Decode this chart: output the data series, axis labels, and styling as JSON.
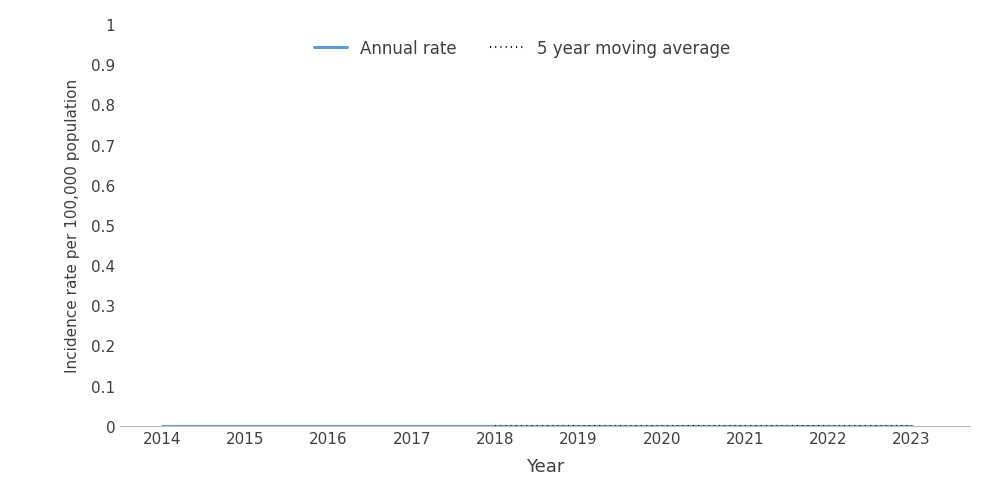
{
  "years": [
    2014,
    2015,
    2016,
    2017,
    2018,
    2019,
    2020,
    2021,
    2022,
    2023
  ],
  "annual_rate": [
    0.0,
    0.0,
    0.0,
    0.0,
    0.0,
    0.0,
    0.0,
    0.0,
    0.0,
    0.0
  ],
  "moving_avg": [
    null,
    null,
    null,
    null,
    0.0,
    0.0,
    0.0,
    0.0,
    0.0,
    0.0
  ],
  "annual_rate_color": "#5B9BD5",
  "moving_avg_color": "#000000",
  "ylabel": "Incidence rate per 100,000 population",
  "xlabel": "Year",
  "ylim": [
    0,
    1
  ],
  "yticks": [
    0,
    0.1,
    0.2,
    0.3,
    0.4,
    0.5,
    0.6,
    0.7,
    0.8,
    0.9,
    1
  ],
  "ytick_labels": [
    "0",
    "0.1",
    "0.2",
    "0.3",
    "0.4",
    "0.5",
    "0.6",
    "0.7",
    "0.8",
    "0.9",
    "1"
  ],
  "legend_annual_label": "Annual rate",
  "legend_ma_label": "5 year moving average",
  "background_color": "#ffffff",
  "spine_color": "#c0c0c0",
  "tick_color": "#404040",
  "label_color": "#404040"
}
